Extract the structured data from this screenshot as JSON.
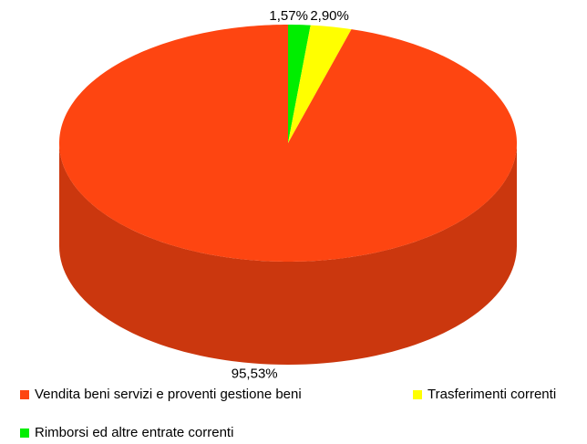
{
  "chart_data": {
    "type": "pie3d",
    "categories": [
      "Vendita beni servizi e proventi gestione beni",
      "Trasferimenti correnti",
      "Rimborsi ed altre entrate correnti"
    ],
    "values": [
      95.53,
      2.9,
      1.57
    ],
    "value_labels": [
      "95,53%",
      "2,90%",
      "1,57%"
    ],
    "colors": [
      "#fe4511",
      "#ffff00",
      "#00ee00"
    ],
    "legend": "bottom"
  }
}
